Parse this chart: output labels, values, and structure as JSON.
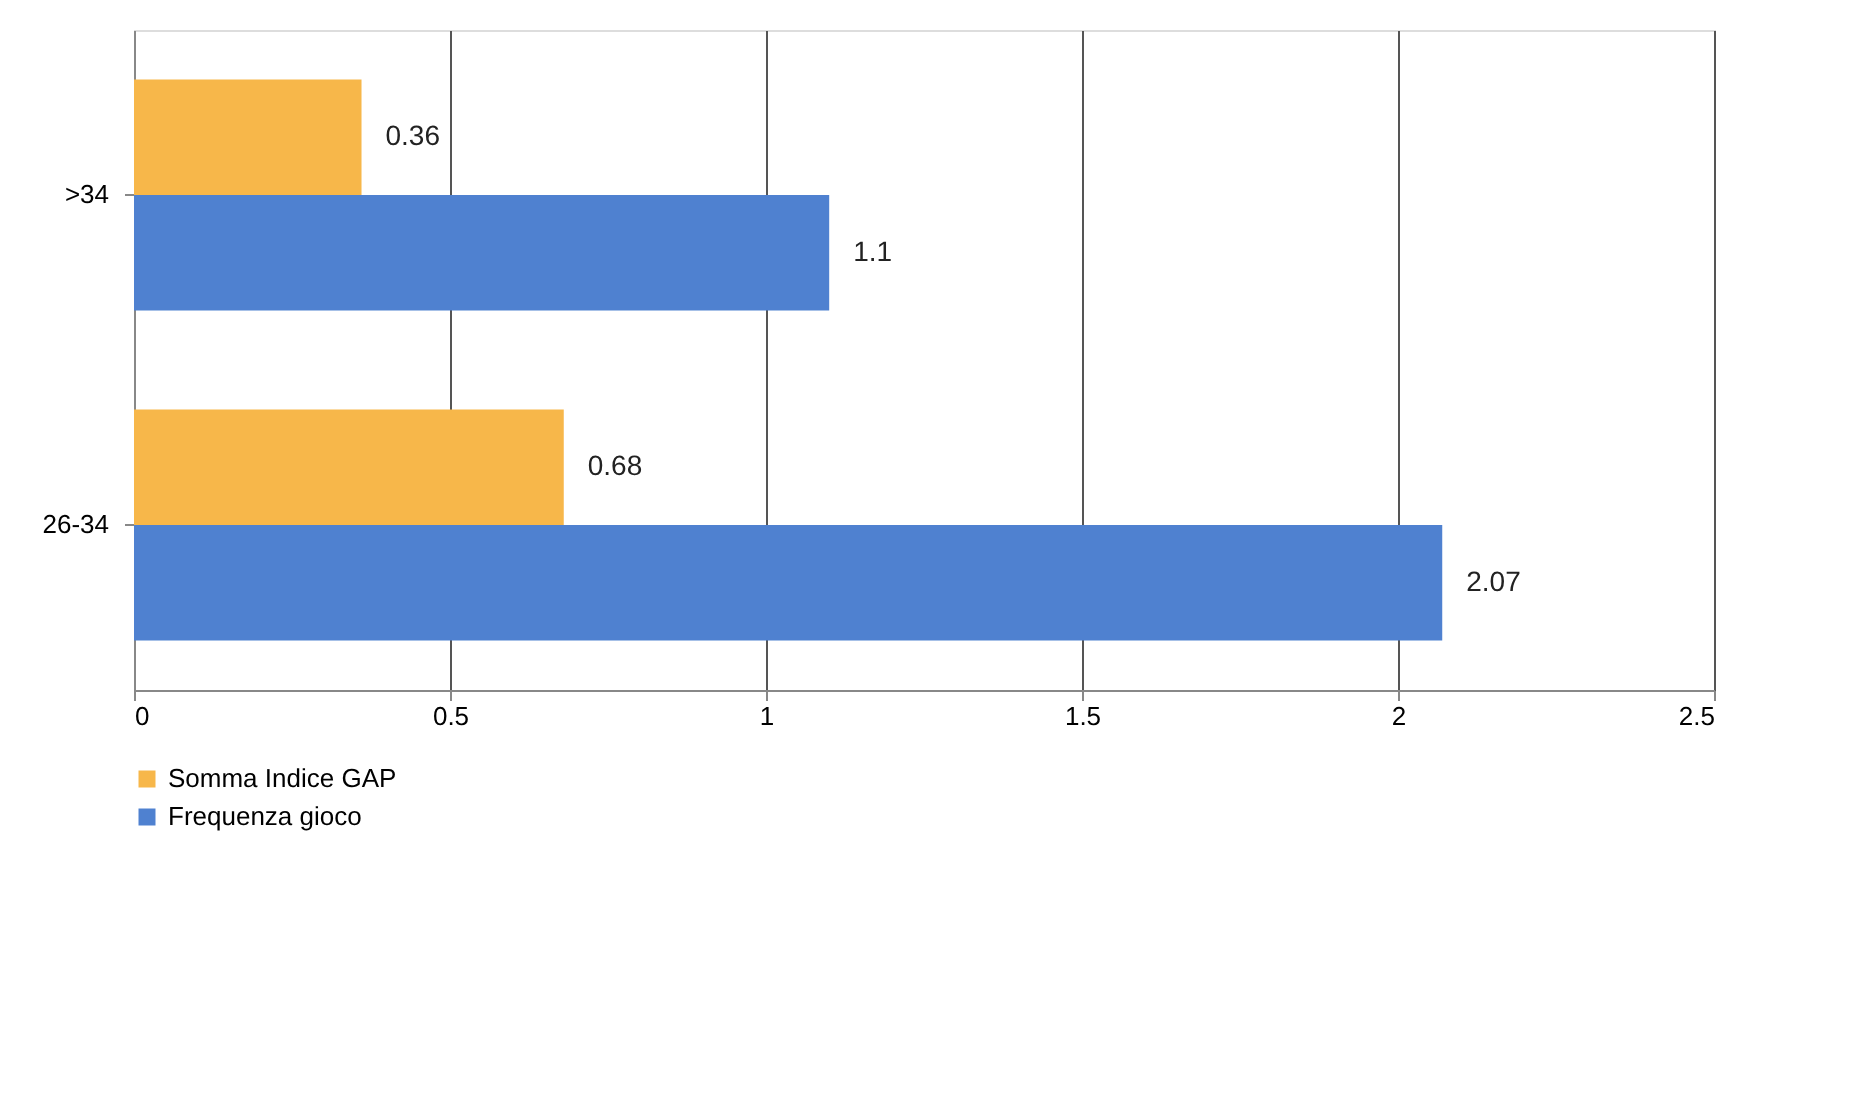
{
  "chart_data": {
    "type": "bar",
    "orientation": "horizontal",
    "categories": [
      ">34",
      "26-34"
    ],
    "series": [
      {
        "name": "Somma Indice GAP",
        "color": "#f7b74a",
        "values": [
          0.36,
          0.68
        ]
      },
      {
        "name": "Frequenza gioco",
        "color": "#4f81d0",
        "values": [
          1.1,
          2.07
        ]
      }
    ],
    "xlim": [
      0,
      2.5
    ],
    "xticks": [
      0,
      0.5,
      1,
      1.5,
      2,
      2.5
    ],
    "grid": "x",
    "legend": "bottom",
    "data_labels": true
  }
}
